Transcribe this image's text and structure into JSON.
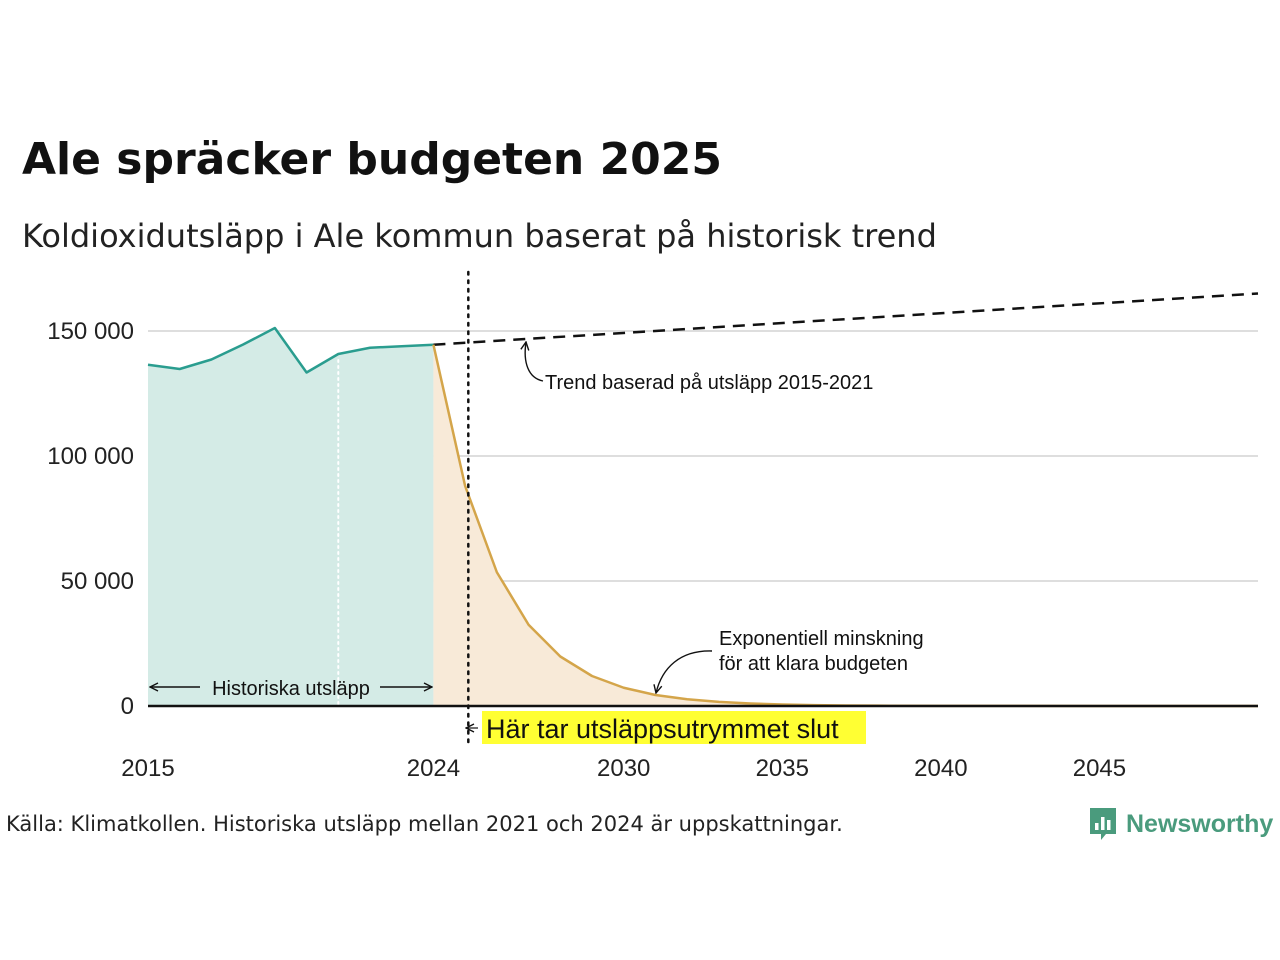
{
  "chart_data": {
    "type": "area",
    "title": "Ale spräcker budgeten 2025",
    "subtitle": "Koldioxidutsläpp i Ale kommun baserat på historisk trend",
    "xlim": [
      2015,
      2050
    ],
    "ylim": [
      0,
      160000
    ],
    "x_ticks": [
      "2015",
      "2024",
      "2030",
      "2035",
      "2040",
      "2045"
    ],
    "y_ticks": [
      "0",
      "50 000",
      "100 000",
      "150 000"
    ],
    "y_tick_values": [
      0,
      50000,
      100000,
      150000
    ],
    "x_tick_values": [
      2015,
      2024,
      2030,
      2035,
      2040,
      2045
    ],
    "grid": true,
    "series": [
      {
        "role": "historical",
        "x": [
          2015,
          2016,
          2017,
          2018,
          2019,
          2020,
          2021,
          2022,
          2023,
          2024
        ],
        "y": [
          136500,
          134800,
          138600,
          144600,
          151200,
          133400,
          140800,
          143300,
          143900,
          144500
        ],
        "color": "#2a9d8f",
        "fill": "#d4ebe6"
      },
      {
        "role": "trend",
        "x": [
          2024,
          2050
        ],
        "y": [
          144500,
          165000
        ],
        "color": "#111111",
        "dashed": true
      },
      {
        "role": "budget-reduction",
        "x": [
          2024,
          2025,
          2026,
          2027,
          2028,
          2029,
          2030,
          2031,
          2032,
          2033,
          2034,
          2035,
          2036,
          2037,
          2038,
          2040,
          2045,
          2050
        ],
        "y": [
          144500,
          88000,
          53500,
          32500,
          19800,
          12000,
          7300,
          4400,
          2700,
          1650,
          1000,
          600,
          370,
          220,
          140,
          50,
          5,
          0
        ],
        "color": "#d4a54a",
        "fill": "#f8ead8"
      }
    ],
    "reference_lines": [
      {
        "x": 2021,
        "style": "dotted",
        "color": "#ffffff"
      },
      {
        "x": 2025.1,
        "style": "dotted",
        "color": "#111111"
      }
    ],
    "annotations": {
      "trend": "Trend baserad på utsläpp 2015-2021",
      "exponential_line1": "Exponentiell minskning",
      "exponential_line2": "för att klara budgeten",
      "historical": "Historiska utsläpp",
      "budget_end": "Här tar utsläppsutrymmet slut",
      "budget_end_highlight": "#ffff33"
    }
  },
  "source": "Källa: Klimatkollen. Historiska utsläpp mellan 2021 och 2024 är uppskattningar.",
  "brand": {
    "name": "Newsworthy",
    "color": "#4a9b7d"
  }
}
